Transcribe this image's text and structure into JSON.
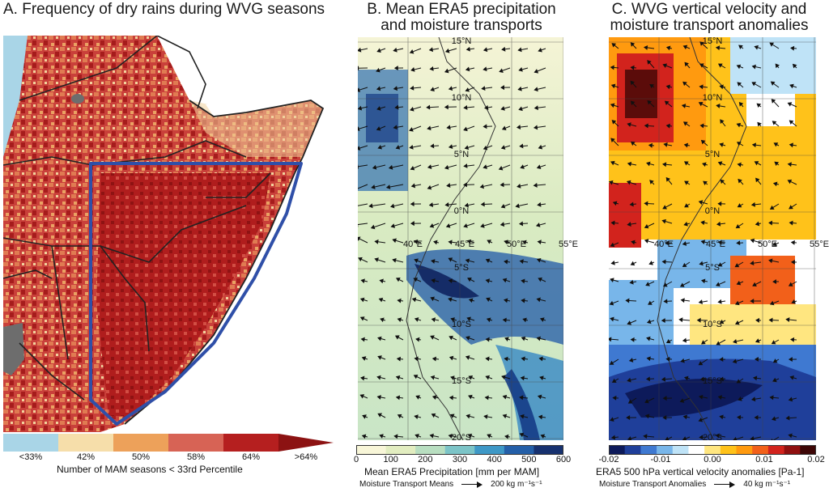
{
  "panelA": {
    "title": "A. Frequency of dry rains during WVG seasons",
    "colorbar": {
      "bins": [
        "<33%",
        "42%",
        "50%",
        "58%",
        "64%",
        ">64%"
      ],
      "colors": [
        "#a9d5e7",
        "#f6deaa",
        "#eda15a",
        "#d76355",
        "#b51f1f",
        "#8c1212"
      ],
      "label": "Number of MAM seasons < 33rd Percentile"
    }
  },
  "panelB": {
    "title_line1": "B. Mean ERA5 precipitation",
    "title_line2": "and moisture transports",
    "lat_labels": [
      "15°N",
      "10°N",
      "5°N",
      "0°N",
      "5°S",
      "10°S",
      "15°S",
      "20°S"
    ],
    "lon_labels": [
      "40°E",
      "45°E",
      "50°E",
      "55°E"
    ],
    "colorbar": {
      "ticks": [
        "0",
        "100",
        "200",
        "300",
        "400",
        "500",
        "600"
      ],
      "colors": [
        "#f8f6d8",
        "#e2edc0",
        "#b8dec0",
        "#7cc4c7",
        "#3e98c6",
        "#245fa8",
        "#17316f"
      ],
      "label": "Mean ERA5 Precipitation [mm per MAM]"
    },
    "vector_legend": {
      "label": "Moisture Transport Means",
      "scale": "200 kg m⁻¹s⁻¹"
    }
  },
  "panelC": {
    "title_line1": "C. WVG vertical velocity and",
    "title_line2": "moisture transport anomalies",
    "lat_labels": [
      "15°N",
      "10°N",
      "5°N",
      "0°N",
      "5°S",
      "10°S",
      "15°S",
      "20°S"
    ],
    "lon_labels": [
      "40°E",
      "45°E",
      "50°E",
      "55°E"
    ],
    "colorbar": {
      "ticks": [
        "-0.02",
        "-0.01",
        "0.00",
        "0.01",
        "0.02"
      ],
      "colors": [
        "#0d1a5a",
        "#1f3f9a",
        "#3f79d1",
        "#78b6ea",
        "#bfe3f7",
        "#ffffff",
        "#ffe680",
        "#ffc21a",
        "#ff9a0f",
        "#f2601a",
        "#d2231d",
        "#8f1010",
        "#3d0606"
      ],
      "label": "ERA5 500 hPa vertical velocity anomalies [Pa-1]"
    },
    "vector_legend": {
      "label": "Moisture Transport Anomalies",
      "scale": "40 kg m⁻¹s⁻¹"
    }
  }
}
